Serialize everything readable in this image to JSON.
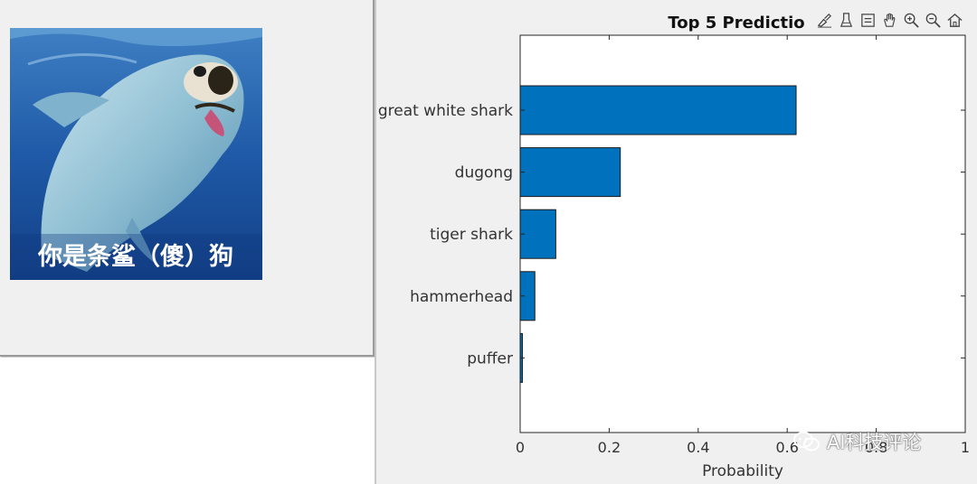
{
  "image_panel": {
    "caption": "你是条鲨（傻）狗"
  },
  "toolbar": {
    "icons": [
      "brush-icon",
      "eraser-icon",
      "legend-icon",
      "pan-hand-icon",
      "zoom-in-icon",
      "zoom-out-icon",
      "home-icon"
    ]
  },
  "watermark": {
    "text": "AI科技评论"
  },
  "colors": {
    "bar": "#0072bd",
    "bar_edge": "#1a1a1a",
    "figure_bg": "#f0f0f0",
    "axes_bg": "#ffffff"
  },
  "chart_data": {
    "type": "bar",
    "orientation": "horizontal",
    "title": "Top 5 Predictio",
    "xlabel": "Probability",
    "ylabel": "",
    "categories": [
      "great white shark",
      "dugong",
      "tiger shark",
      "hammerhead",
      "puffer"
    ],
    "values": [
      0.62,
      0.225,
      0.08,
      0.033,
      0.005
    ],
    "xlim": [
      0,
      1
    ],
    "xticks": [
      0,
      0.2,
      0.4,
      0.6,
      0.8,
      1
    ],
    "xtick_labels": [
      "0",
      "0.2",
      "0.4",
      "0.6",
      "0.8",
      "1"
    ],
    "grid": false,
    "legend": "none"
  }
}
